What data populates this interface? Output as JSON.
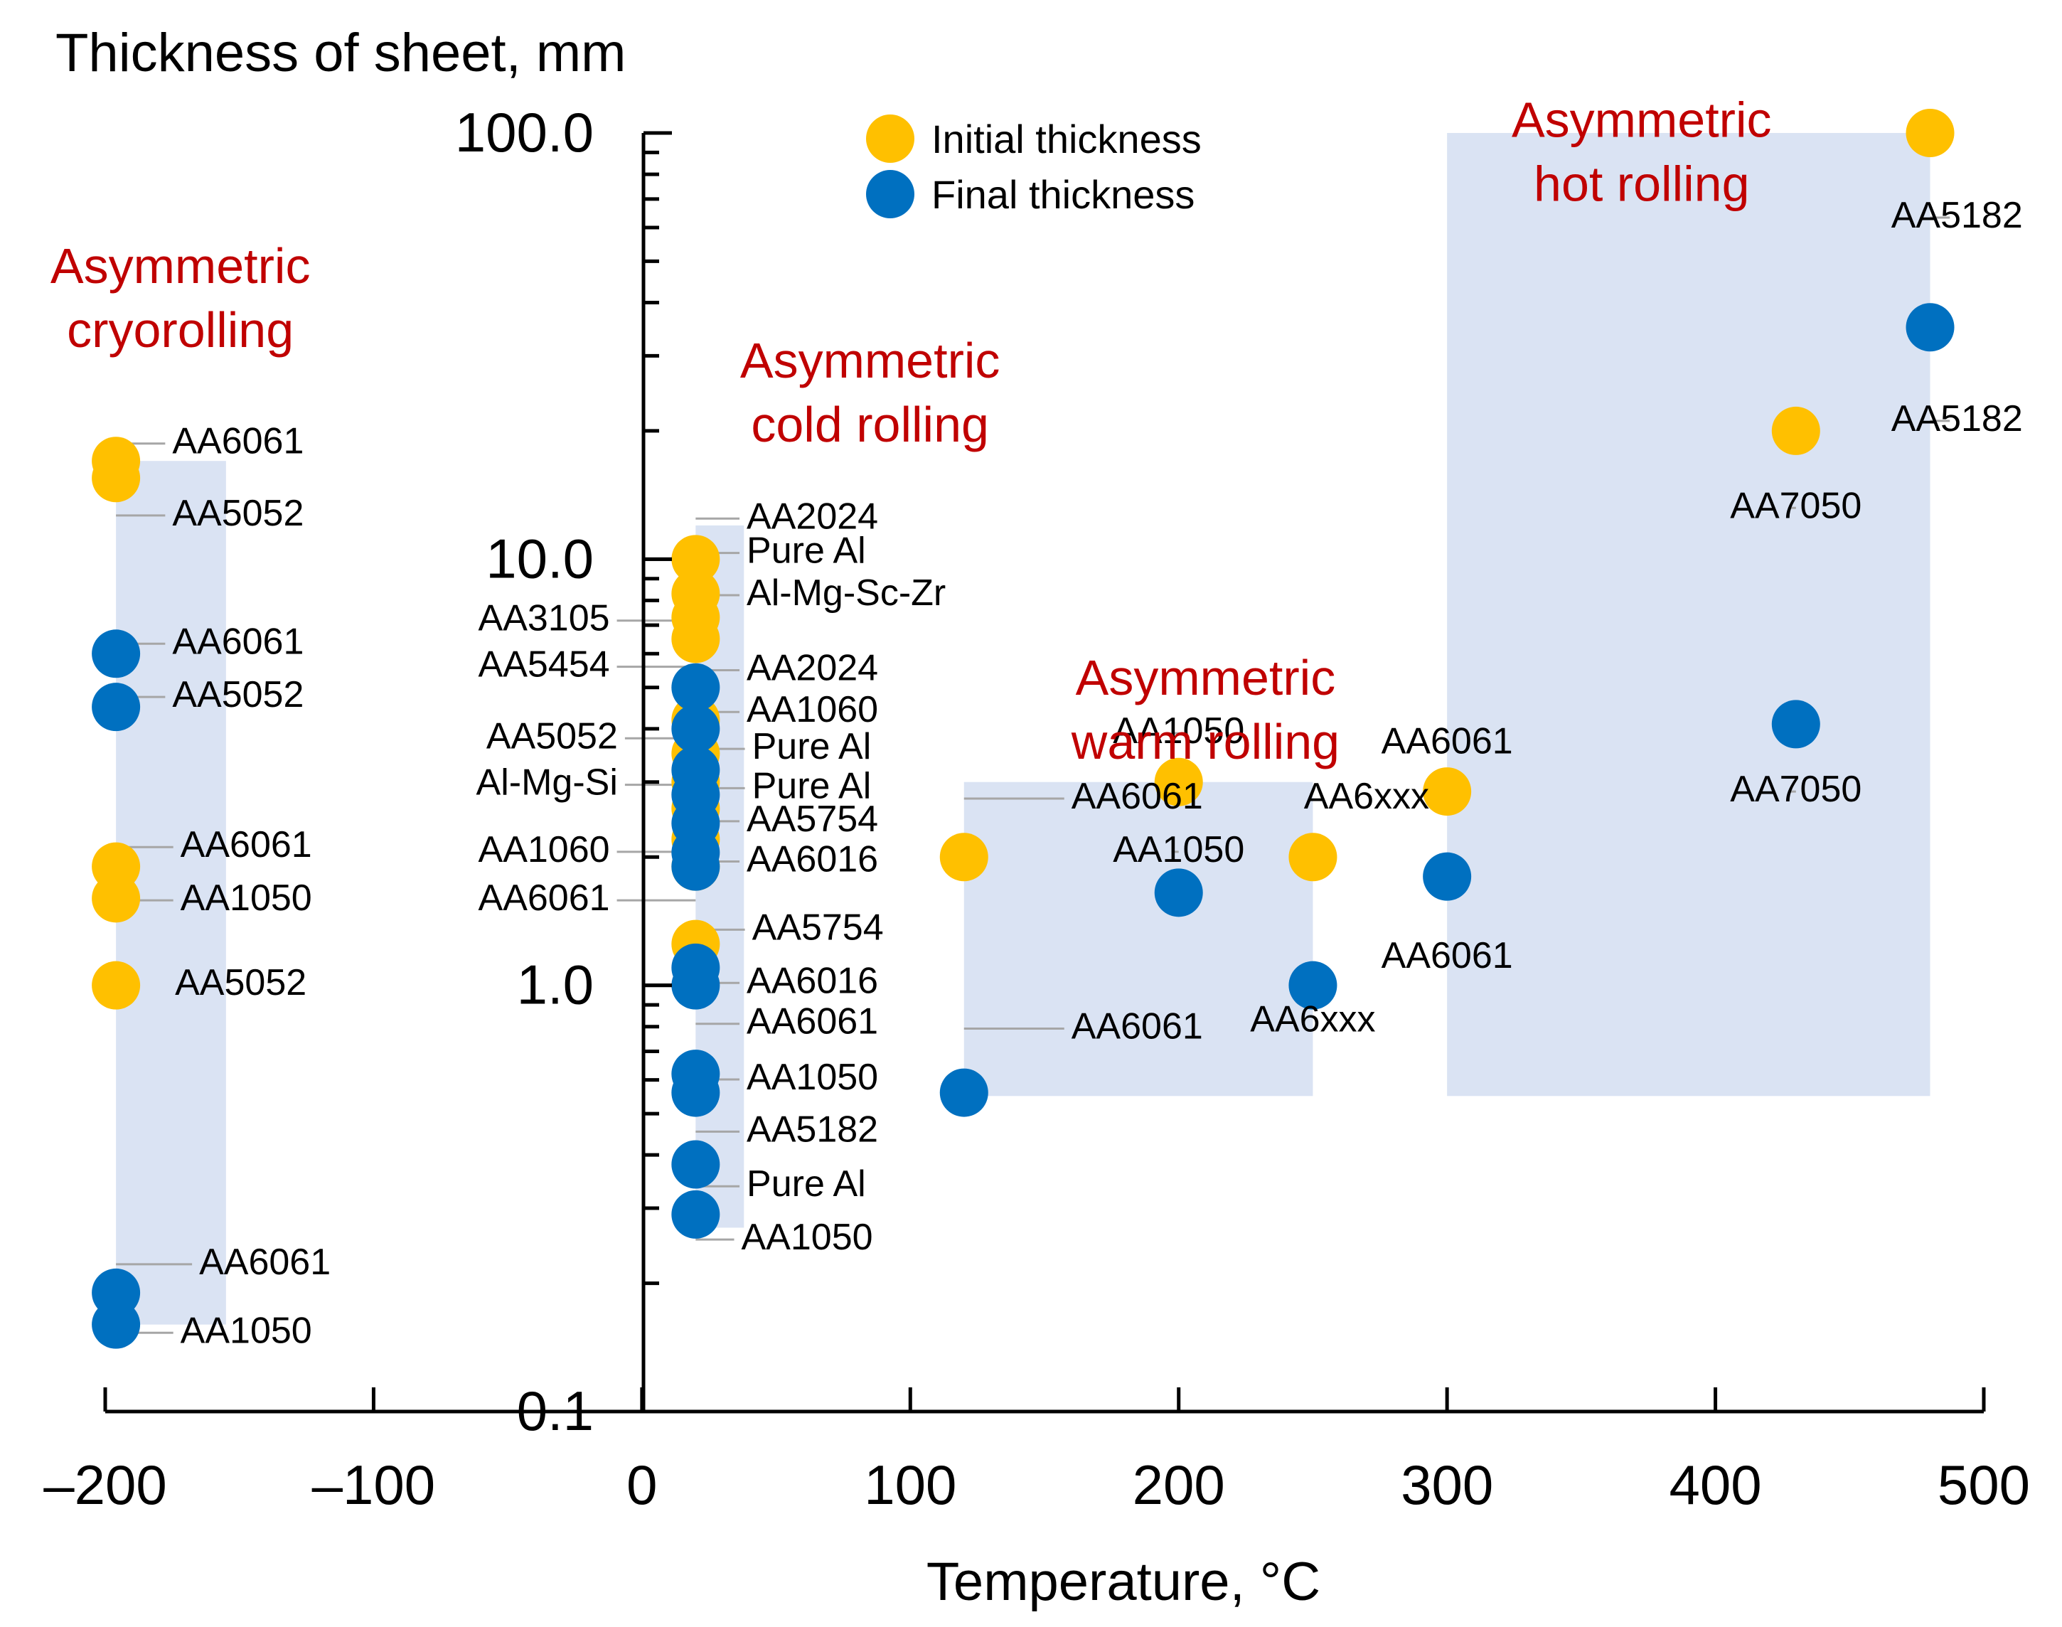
{
  "chart_data": {
    "type": "scatter",
    "title": "",
    "ylabel": "Thickness of sheet, mm",
    "xlabel": "Temperature, °C",
    "xlim": [
      -200,
      500
    ],
    "ylim": [
      0.1,
      100
    ],
    "yscale": "log",
    "x_ticks": [
      -200,
      -100,
      0,
      100,
      200,
      300,
      400,
      500
    ],
    "x_tick_labels": [
      "–200",
      "–100",
      "0",
      "100",
      "200",
      "300",
      "400",
      "500"
    ],
    "y_ticks": [
      0.1,
      1,
      10,
      100
    ],
    "y_tick_labels": [
      "0.1",
      "1.0",
      "10.0",
      "100.0"
    ],
    "colors": {
      "initial": "#ffc000",
      "final": "#0070c0",
      "region": "#dae3f3",
      "region_text": "#c00000"
    },
    "legend": [
      {
        "name": "Initial thickness",
        "color": "#ffc000"
      },
      {
        "name": "Final thickness",
        "color": "#0070c0"
      }
    ],
    "regions": [
      {
        "title": [
          "Asymmetric",
          "cryorolling"
        ],
        "x": [
          -196,
          -155
        ],
        "y": [
          0.16,
          17
        ]
      },
      {
        "title": [
          "Asymmetric",
          "cold rolling"
        ],
        "x": [
          20,
          38
        ],
        "y": [
          0.27,
          12
        ]
      },
      {
        "title": [
          "Asymmetric",
          "warm rolling"
        ],
        "x": [
          120,
          250
        ],
        "y": [
          0.55,
          3.0
        ]
      },
      {
        "title": [
          "Asymmetric",
          "hot rolling"
        ],
        "x": [
          300,
          480
        ],
        "y": [
          0.55,
          100
        ]
      }
    ],
    "series": [
      {
        "name": "Initial thickness",
        "points": [
          {
            "x": -196,
            "y": 17,
            "label": "AA6061"
          },
          {
            "x": -196,
            "y": 15.5,
            "label": "AA5052"
          },
          {
            "x": -196,
            "y": 1.9,
            "label": "AA6061"
          },
          {
            "x": -196,
            "y": 1.6,
            "label": "AA1050"
          },
          {
            "x": -196,
            "y": 1.0,
            "label": "AA5052"
          },
          {
            "x": 20,
            "y": 10,
            "label": "AA2024"
          },
          {
            "x": 20,
            "y": 8.3,
            "label": "Pure Al"
          },
          {
            "x": 20,
            "y": 7.3,
            "label": "Al-Mg-Sc-Zr"
          },
          {
            "x": 20,
            "y": 6.5,
            "label": "AA3105"
          },
          {
            "x": 20,
            "y": 4.2,
            "label": "AA5052"
          },
          {
            "x": 20,
            "y": 3.5,
            "label": ""
          },
          {
            "x": 20,
            "y": 3.0,
            "label": ""
          },
          {
            "x": 20,
            "y": 2.6,
            "label": ""
          },
          {
            "x": 20,
            "y": 2.2,
            "label": ""
          },
          {
            "x": 20,
            "y": 1.9,
            "label": ""
          },
          {
            "x": 20,
            "y": 1.25,
            "label": "AA5754"
          },
          {
            "x": 120,
            "y": 2.0,
            "label": "AA6061"
          },
          {
            "x": 200,
            "y": 3.0,
            "label": "AA1050"
          },
          {
            "x": 250,
            "y": 2.0,
            "label": "AA6xxx"
          },
          {
            "x": 300,
            "y": 2.85,
            "label": "AA6061"
          },
          {
            "x": 430,
            "y": 20,
            "label": "AA7050"
          },
          {
            "x": 480,
            "y": 100,
            "label": "AA5182"
          }
        ]
      },
      {
        "name": "Final thickness",
        "points": [
          {
            "x": -196,
            "y": 6.0,
            "label": "AA6061"
          },
          {
            "x": -196,
            "y": 4.5,
            "label": "AA5052"
          },
          {
            "x": -196,
            "y": 0.19,
            "label": "AA6061"
          },
          {
            "x": -196,
            "y": 0.16,
            "label": "AA1050"
          },
          {
            "x": 20,
            "y": 5.0,
            "label": "AA2024"
          },
          {
            "x": 20,
            "y": 4.0,
            "label": "AA1060"
          },
          {
            "x": 20,
            "y": 3.2,
            "label": "Pure Al"
          },
          {
            "x": 20,
            "y": 2.8,
            "label": "Pure Al"
          },
          {
            "x": 20,
            "y": 2.4,
            "label": "AA5754"
          },
          {
            "x": 20,
            "y": 2.05,
            "label": "AA1060"
          },
          {
            "x": 20,
            "y": 1.9,
            "label": "AA6061"
          },
          {
            "x": 20,
            "y": 1.1,
            "label": "AA6016"
          },
          {
            "x": 20,
            "y": 1.0,
            "label": "AA6016"
          },
          {
            "x": 20,
            "y": 0.62,
            "label": "AA6061"
          },
          {
            "x": 20,
            "y": 0.56,
            "label": "AA1050"
          },
          {
            "x": 20,
            "y": 0.38,
            "label": "AA5182"
          },
          {
            "x": 20,
            "y": 0.29,
            "label": "Pure Al"
          },
          {
            "x": 120,
            "y": 0.56,
            "label": "AA6061"
          },
          {
            "x": 200,
            "y": 1.65,
            "label": "AA1050"
          },
          {
            "x": 250,
            "y": 1.0,
            "label": "AA6xxx"
          },
          {
            "x": 300,
            "y": 1.8,
            "label": "AA6061"
          },
          {
            "x": 430,
            "y": 4.1,
            "label": "AA7050"
          },
          {
            "x": 480,
            "y": 35,
            "label": "AA5182"
          }
        ]
      }
    ],
    "labels": [
      {
        "text": "AA6061",
        "x": -175,
        "y": 17.7,
        "line": true
      },
      {
        "text": "AA5052",
        "x": -175,
        "y": 12.0,
        "line": true
      },
      {
        "text": "AA6061",
        "x": -175,
        "y": 6.0,
        "line": true
      },
      {
        "text": "AA5052",
        "x": -175,
        "y": 4.5,
        "line": true
      },
      {
        "text": "AA6061",
        "x": -172,
        "y": 2.0,
        "line": true
      },
      {
        "text": "AA1050",
        "x": -172,
        "y": 1.5,
        "line": true
      },
      {
        "text": "AA5052",
        "x": -174,
        "y": 0.95,
        "line": false
      },
      {
        "text": "AA6061",
        "x": -165,
        "y": 0.21,
        "line": true
      },
      {
        "text": "AA1050",
        "x": -172,
        "y": 0.145,
        "line": true
      },
      {
        "text": "AA2024",
        "x": 39,
        "y": 11.8,
        "line": true
      },
      {
        "text": "Pure Al",
        "x": 39,
        "y": 9.8,
        "line": true
      },
      {
        "text": "Al-Mg-Sc-Zr",
        "x": 39,
        "y": 7.8,
        "line": true
      },
      {
        "text": "AA2024",
        "x": 39,
        "y": 5.2,
        "line": true
      },
      {
        "text": "AA1060",
        "x": 39,
        "y": 4.15,
        "line": true
      },
      {
        "text": "Pure Al",
        "x": 41,
        "y": 3.4,
        "line": true
      },
      {
        "text": "Pure Al",
        "x": 41,
        "y": 2.75,
        "line": true
      },
      {
        "text": "AA5754",
        "x": 39,
        "y": 2.3,
        "line": true
      },
      {
        "text": "AA6016",
        "x": 39,
        "y": 1.85,
        "line": true
      },
      {
        "text": "AA5754",
        "x": 41,
        "y": 1.28,
        "line": true
      },
      {
        "text": "AA6016",
        "x": 39,
        "y": 0.96,
        "line": true
      },
      {
        "text": "AA6061",
        "x": 39,
        "y": 0.77,
        "line": true
      },
      {
        "text": "AA1050",
        "x": 39,
        "y": 0.57,
        "line": true
      },
      {
        "text": "AA5182",
        "x": 39,
        "y": 0.43,
        "line": true
      },
      {
        "text": "Pure Al",
        "x": 39,
        "y": 0.32,
        "line": true
      },
      {
        "text": "AA1050",
        "x": 37,
        "y": 0.24,
        "line": true
      },
      {
        "text": "AA3105",
        "x": -12,
        "y": 6.8,
        "line": true,
        "anchor": "end"
      },
      {
        "text": "AA5454",
        "x": -12,
        "y": 5.3,
        "line": true,
        "anchor": "end"
      },
      {
        "text": "AA5052",
        "x": -9,
        "y": 3.6,
        "line": true,
        "anchor": "end"
      },
      {
        "text": "Al-Mg-Si",
        "x": -9,
        "y": 2.8,
        "line": true,
        "anchor": "end"
      },
      {
        "text": "AA1060",
        "x": -12,
        "y": 1.95,
        "line": true,
        "anchor": "end"
      },
      {
        "text": "AA6061",
        "x": -12,
        "y": 1.5,
        "line": true,
        "anchor": "end"
      },
      {
        "text": "AA6061",
        "x": 160,
        "y": 2.6,
        "line": true
      },
      {
        "text": "AA1050",
        "x": 200,
        "y": 3.7,
        "line": true
      },
      {
        "text": "AA6xxx",
        "x": 270,
        "y": 2.6,
        "line": false
      },
      {
        "text": "AA1050",
        "x": 200,
        "y": 1.95,
        "line": true
      },
      {
        "text": "AA6xxx",
        "x": 250,
        "y": 0.78,
        "line": false
      },
      {
        "text": "AA6061",
        "x": 300,
        "y": 3.5,
        "line": false
      },
      {
        "text": "AA6061",
        "x": 300,
        "y": 1.1,
        "line": false
      },
      {
        "text": "AA6061",
        "x": 160,
        "y": 0.75,
        "line": true
      },
      {
        "text": "AA7050",
        "x": 430,
        "y": 12.5,
        "line": true
      },
      {
        "text": "AA7050",
        "x": 430,
        "y": 2.7,
        "line": true
      },
      {
        "text": "AA5182",
        "x": 490,
        "y": 60,
        "line": true
      },
      {
        "text": "AA5182",
        "x": 490,
        "y": 20,
        "line": true
      }
    ]
  }
}
